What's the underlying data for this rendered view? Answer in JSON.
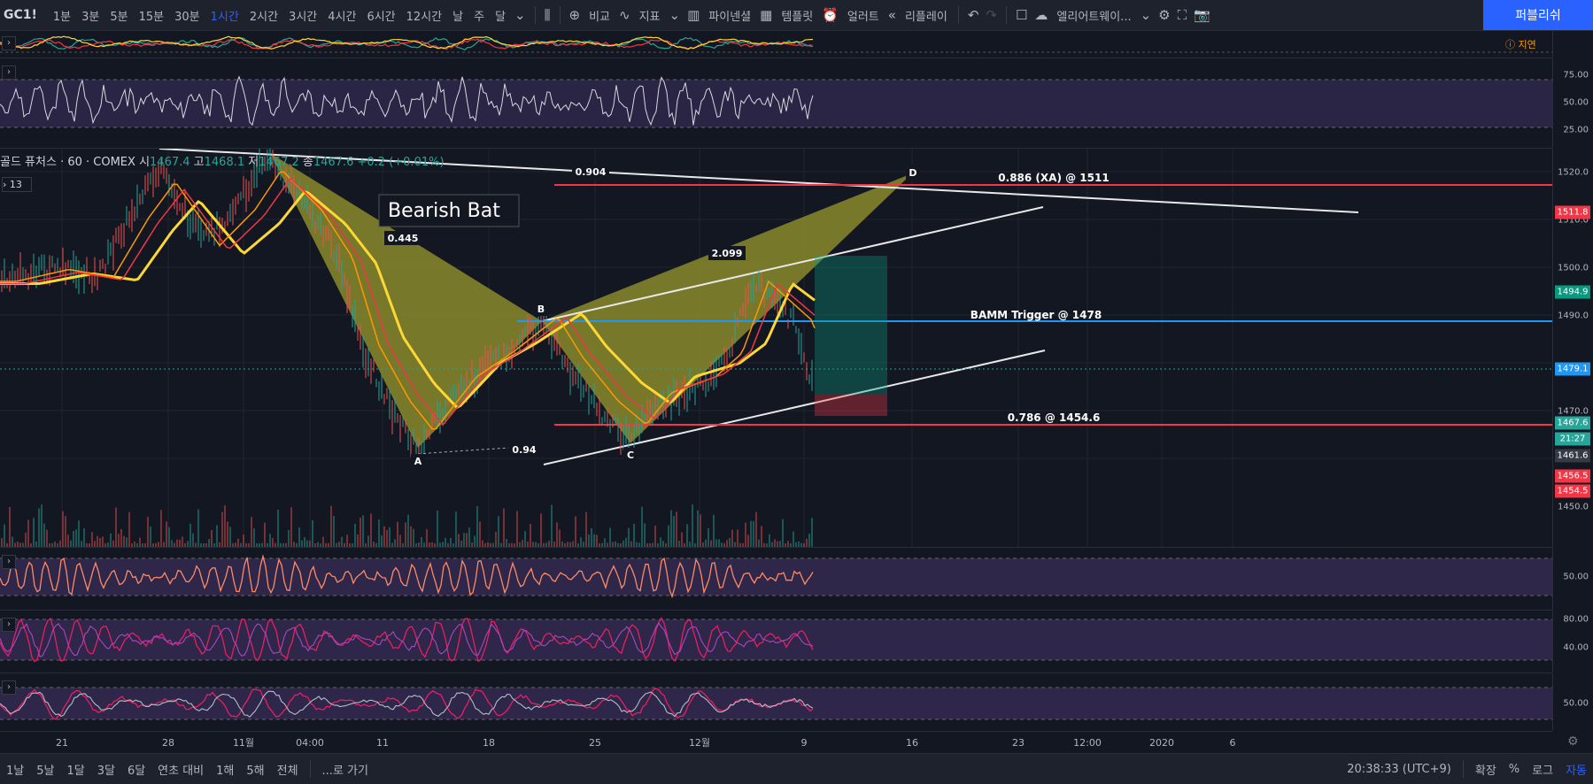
{
  "toolbar": {
    "symbol": "GC1!",
    "intervals": [
      "1분",
      "3분",
      "5분",
      "15분",
      "30분",
      "1시간",
      "2시간",
      "3시간",
      "4시간",
      "6시간",
      "12시간",
      "날",
      "주",
      "달"
    ],
    "active_interval": "1시간",
    "compare_label": "비교",
    "indicators_label": "지표",
    "pine_label": "파이넨셜",
    "templates_label": "템플릿",
    "alert_label": "얼러트",
    "replay_label": "리플레이",
    "layout_label": "엘리어트웨이...",
    "publish_label": "퍼블리쉬"
  },
  "delay_label": "지연",
  "legend": {
    "name": "골드 퓨처스 · 60 · COMEX",
    "o_label": "시",
    "o": "1467.4",
    "h_label": "고",
    "h": "1468.1",
    "l_label": "저",
    "l": "1467.2",
    "c_label": "종",
    "c": "1467.6",
    "change": "+0.2 (+0.01%)",
    "indicator_count": "13"
  },
  "panes": {
    "rsi_axis": [
      "75.00",
      "50.00",
      "25.00"
    ],
    "price_axis": [
      "1520.0",
      "1510.0",
      "1500.0",
      "1490.0",
      "1470.0",
      "1450.0"
    ],
    "osc1_axis": [
      "50.00"
    ],
    "osc2_axis": [
      "80.00",
      "40.00"
    ],
    "osc3_axis": [
      "50.00"
    ]
  },
  "price_tags": [
    {
      "value": "1511.8",
      "color": "#f23645"
    },
    {
      "value": "1494.9",
      "color": "#089981"
    },
    {
      "value": "1479.1",
      "color": "#2196f3"
    },
    {
      "value": "1467.6",
      "color": "#26a69a"
    },
    {
      "value": "21:27",
      "color": "#26a69a"
    },
    {
      "value": "1461.6",
      "color": "#363a45"
    },
    {
      "value": "1456.5",
      "color": "#f23645"
    },
    {
      "value": "1454.5",
      "color": "#f23645"
    }
  ],
  "pattern": {
    "title": "Bearish Bat",
    "points": [
      "A",
      "B",
      "C",
      "D"
    ],
    "ratios": {
      "xb": "0.445",
      "ac": "0.94",
      "bd": "2.099",
      "xd": "0.904"
    }
  },
  "levels": {
    "xa": "0.886 (XA) @ 1511",
    "bamm": "BAMM Trigger @ 1478",
    "level786": "0.786 @ 1454.6"
  },
  "time_axis": [
    "21",
    "28",
    "11월",
    "04:00",
    "11",
    "18",
    "25",
    "12월",
    "9",
    "16",
    "23",
    "12:00",
    "2020",
    "6"
  ],
  "bottombar": {
    "ranges": [
      "1날",
      "5날",
      "1달",
      "3달",
      "6달",
      "연초 대비",
      "1해",
      "5해",
      "전체"
    ],
    "goto": "...로 가기",
    "clock": "20:38:33 (UTC+9)",
    "expand": "확장",
    "percent": "%",
    "log": "로그",
    "auto": "자동"
  },
  "colors": {
    "accent": "#2962ff",
    "background": "#131722",
    "pattern_fill": "#8a8a2a"
  }
}
